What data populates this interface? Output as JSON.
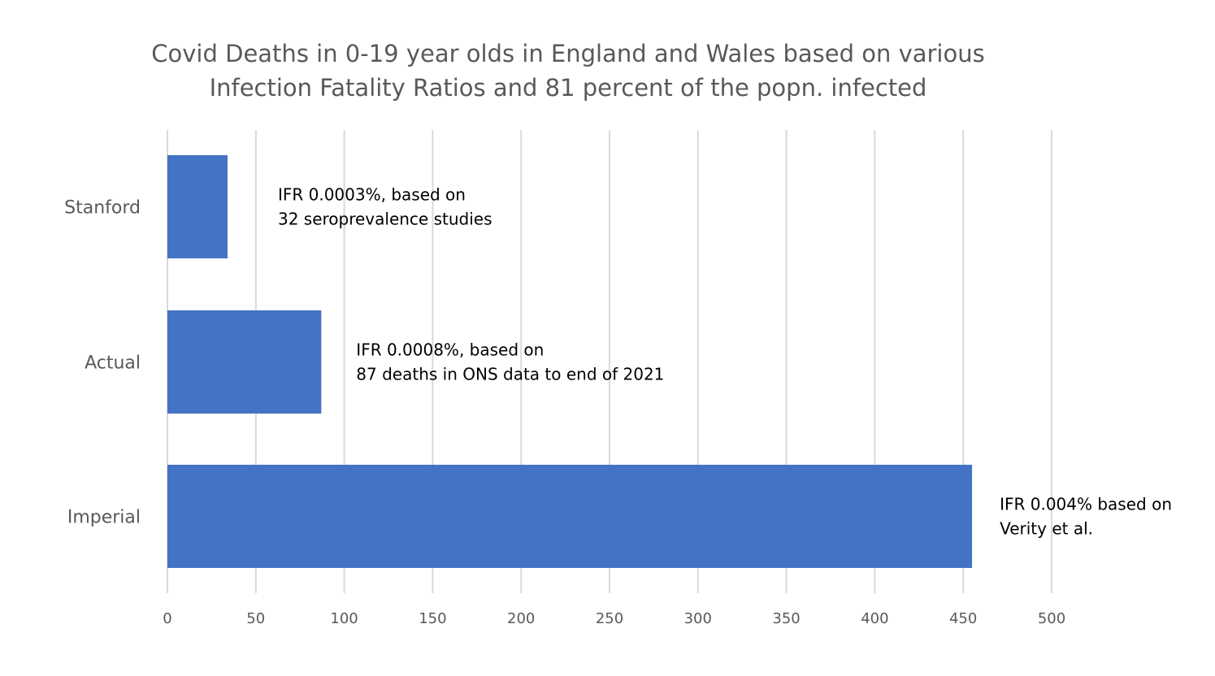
{
  "chart_data": {
    "type": "bar",
    "orientation": "horizontal",
    "title_lines": [
      "Covid Deaths in 0-19 year olds in England and Wales based on various",
      "Infection Fatality Ratios and 81 percent of the popn. infected"
    ],
    "categories": [
      "Stanford",
      "Actual",
      "Imperial"
    ],
    "values": [
      34,
      87,
      455
    ],
    "bar_color": "#4472c4",
    "xlim": [
      0,
      500
    ],
    "x_ticks": [
      0,
      50,
      100,
      150,
      200,
      250,
      300,
      350,
      400,
      450,
      500
    ],
    "x_tick_labels": [
      "0",
      "50",
      "100",
      "150",
      "200",
      "250",
      "300",
      "350",
      "400",
      "450",
      "500"
    ],
    "grid": true,
    "annotations": [
      [
        "IFR 0.0003%, based on",
        "32 seroprevalence studies"
      ],
      [
        "IFR 0.0008%, based on",
        "87 deaths in ONS data to end of 2021"
      ],
      [
        "IFR 0.004% based on",
        "Verity et al."
      ]
    ],
    "xlabel": "",
    "ylabel": ""
  }
}
